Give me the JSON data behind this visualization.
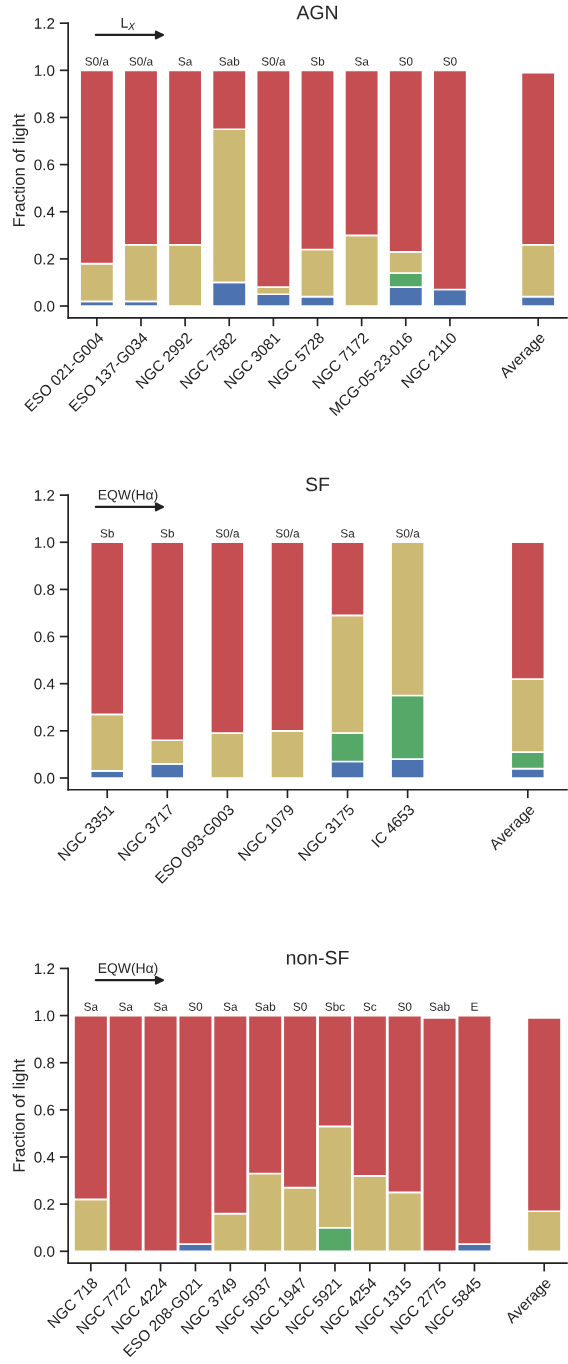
{
  "chart_data": [
    {
      "type": "bar",
      "stacked": true,
      "title": "AGN",
      "ylabel": "Fraction of light",
      "categories": [
        "ESO 021-G004",
        "ESO 137-G034",
        "NGC 2992",
        "NGC 7582",
        "NGC 3081",
        "NGC 5728",
        "NGC 7172",
        "MCG-05-23-016",
        "NGC 2110",
        null,
        "Average"
      ],
      "series": [
        {
          "color": "#4c72b0",
          "values": [
            0.02,
            0.02,
            0,
            0.1,
            0.05,
            0.04,
            0,
            0.08,
            0.07,
            null,
            0.04
          ]
        },
        {
          "color": "#55a868",
          "values": [
            0,
            0,
            0,
            0,
            0,
            0,
            0,
            0.06,
            0,
            null,
            null
          ]
        },
        {
          "color": "#ccb974",
          "values": [
            0.16,
            0.24,
            0.26,
            0.65,
            0.03,
            0.2,
            0.3,
            0.09,
            0,
            null,
            0.22
          ]
        },
        {
          "color": "#c44e52",
          "values": [
            0.82,
            0.74,
            0.74,
            0.25,
            0.92,
            0.76,
            0.7,
            0.77,
            0.93,
            null,
            0.73
          ]
        }
      ],
      "ylim": [
        -0.05,
        1.2
      ],
      "yticks": [
        {
          "value": 0,
          "label": "0.0"
        },
        {
          "value": 0.2,
          "label": "0.2"
        },
        {
          "value": 0.4,
          "label": "0.4"
        },
        {
          "value": 0.6,
          "label": "0.6"
        },
        {
          "value": 0.8,
          "label": "0.8"
        },
        {
          "value": 1.0,
          "label": "1.0"
        },
        {
          "value": 1.2,
          "label": "1.2"
        }
      ],
      "grid": false,
      "legend": false,
      "annotations": [
        "L$_{X}$",
        {
          "text": "S0/a",
          "x": "ESO 021-G004",
          "y": 1
        },
        {
          "text": "S0/a",
          "x": "ESO 137-G034",
          "y": 1
        },
        {
          "text": "Sa",
          "x": "NGC 2992",
          "y": 1
        },
        {
          "text": "Sab",
          "x": "NGC 7582",
          "y": 1
        },
        {
          "text": "S0/a",
          "x": "NGC 3081",
          "y": 1
        },
        {
          "text": "Sb",
          "x": "NGC 5728",
          "y": 1
        },
        {
          "text": "Sa",
          "x": "NGC 7172",
          "y": 1
        },
        {
          "text": "S0",
          "x": "MCG-05-23-016",
          "y": 1
        },
        {
          "text": "S0",
          "x": "NGC 2110",
          "y": 1
        }
      ]
    },
    {
      "type": "bar",
      "stacked": true,
      "title": "SF",
      "categories": [
        "NGC 3351",
        "NGC 3717",
        "ESO 093-G003",
        "NGC 1079",
        "NGC 3175",
        "IC 4653",
        null,
        "Average"
      ],
      "series": [
        {
          "color": "#4c72b0",
          "values": [
            0.03,
            0.06,
            0,
            0,
            0.07,
            0.08,
            null,
            0.04
          ]
        },
        {
          "color": "#55a868",
          "values": [
            0,
            0,
            0,
            0,
            0.12,
            0.27,
            null,
            0.07
          ]
        },
        {
          "color": "#ccb974",
          "values": [
            0.24,
            0.1,
            0.19,
            0.2,
            0.5,
            0.65,
            null,
            0.31
          ]
        },
        {
          "color": "#c44e52",
          "values": [
            0.73,
            0.84,
            0.81,
            0.8,
            0.31,
            0,
            null,
            0.58
          ]
        }
      ],
      "ylim": [
        -0.05,
        1.2
      ],
      "yticks": [
        {
          "value": 0,
          "label": "0.0"
        },
        {
          "value": 0.2,
          "label": "0.2"
        },
        {
          "value": 0.4,
          "label": "0.4"
        },
        {
          "value": 0.6,
          "label": "0.6"
        },
        {
          "value": 0.8,
          "label": "0.8"
        },
        {
          "value": 1.0,
          "label": "1.0"
        },
        {
          "value": 1.2,
          "label": "1.2"
        }
      ],
      "grid": false,
      "legend": false,
      "annotations": [
        "EQW(Hα)",
        {
          "text": "Sb",
          "x": "NGC 3351",
          "y": 1
        },
        {
          "text": "Sb",
          "x": "NGC 3717",
          "y": 1
        },
        {
          "text": "S0/a",
          "x": "ESO 093-G003",
          "y": 1
        },
        {
          "text": "S0/a",
          "x": "NGC 1079",
          "y": 1
        },
        {
          "text": "Sa",
          "x": "NGC 3175",
          "y": 1
        },
        {
          "text": "S0/a",
          "x": "IC 4653",
          "y": 1
        }
      ]
    },
    {
      "type": "bar",
      "stacked": true,
      "title": "non-SF",
      "ylabel": "Fraction of light",
      "categories": [
        "NGC 718",
        "NGC 7727",
        "NGC 4224",
        "ESO 208-G021",
        "NGC 3749",
        "NGC 5037",
        "NGC 1947",
        "NGC 5921",
        "NGC 4254",
        "NGC 1315",
        "NGC 2775",
        "NGC 5845",
        null,
        "Average"
      ],
      "series": [
        {
          "color": "#4c72b0",
          "values": [
            0,
            0,
            0,
            0.03,
            0,
            0,
            0,
            0,
            0,
            0,
            0,
            0.03,
            null,
            0
          ]
        },
        {
          "color": "#55a868",
          "values": [
            0,
            0,
            0,
            0,
            0,
            0,
            0,
            0.1,
            0,
            0,
            0,
            0,
            null,
            null
          ]
        },
        {
          "color": "#ccb974",
          "values": [
            0.22,
            0,
            0,
            0,
            0.16,
            0.33,
            0.27,
            0.43,
            0.32,
            0.25,
            null,
            0,
            null,
            0.17
          ]
        },
        {
          "color": "#c44e52",
          "values": [
            0.78,
            1,
            1,
            0.97,
            0.84,
            0.67,
            0.73,
            0.47,
            0.68,
            0.75,
            0.99,
            0.97,
            null,
            0.82
          ]
        }
      ],
      "ylim": [
        -0.05,
        1.2
      ],
      "yticks": [
        {
          "value": 0,
          "label": "0.0"
        },
        {
          "value": 0.2,
          "label": "0.2"
        },
        {
          "value": 0.4,
          "label": "0.4"
        },
        {
          "value": 0.6,
          "label": "0.6"
        },
        {
          "value": 0.8,
          "label": "0.8"
        },
        {
          "value": 1.0,
          "label": "1.0"
        },
        {
          "value": 1.2,
          "label": "1.2"
        }
      ],
      "grid": false,
      "legend": false,
      "annotations": [
        "EQW(Hα)",
        {
          "text": "Sa",
          "x": "NGC 718",
          "y": 1
        },
        {
          "text": "Sa",
          "x": "NGC 7727",
          "y": 1
        },
        {
          "text": "Sa",
          "x": "NGC 4224",
          "y": 1
        },
        {
          "text": "S0",
          "x": "ESO 208-G021",
          "y": 1
        },
        {
          "text": "Sa",
          "x": "NGC 3749",
          "y": 1
        },
        {
          "text": "Sab",
          "x": "NGC 5037",
          "y": 1
        },
        {
          "text": "S0",
          "x": "NGC 1947",
          "y": 1
        },
        {
          "text": "Sbc",
          "x": "NGC 5921",
          "y": 1
        },
        {
          "text": "Sc",
          "x": "NGC 4254",
          "y": 1
        },
        {
          "text": "S0",
          "x": "NGC 1315",
          "y": 1
        },
        {
          "text": "Sab",
          "x": "NGC 2775",
          "y": 1
        },
        {
          "text": "E",
          "x": "NGC 5845",
          "y": 1
        }
      ]
    }
  ]
}
